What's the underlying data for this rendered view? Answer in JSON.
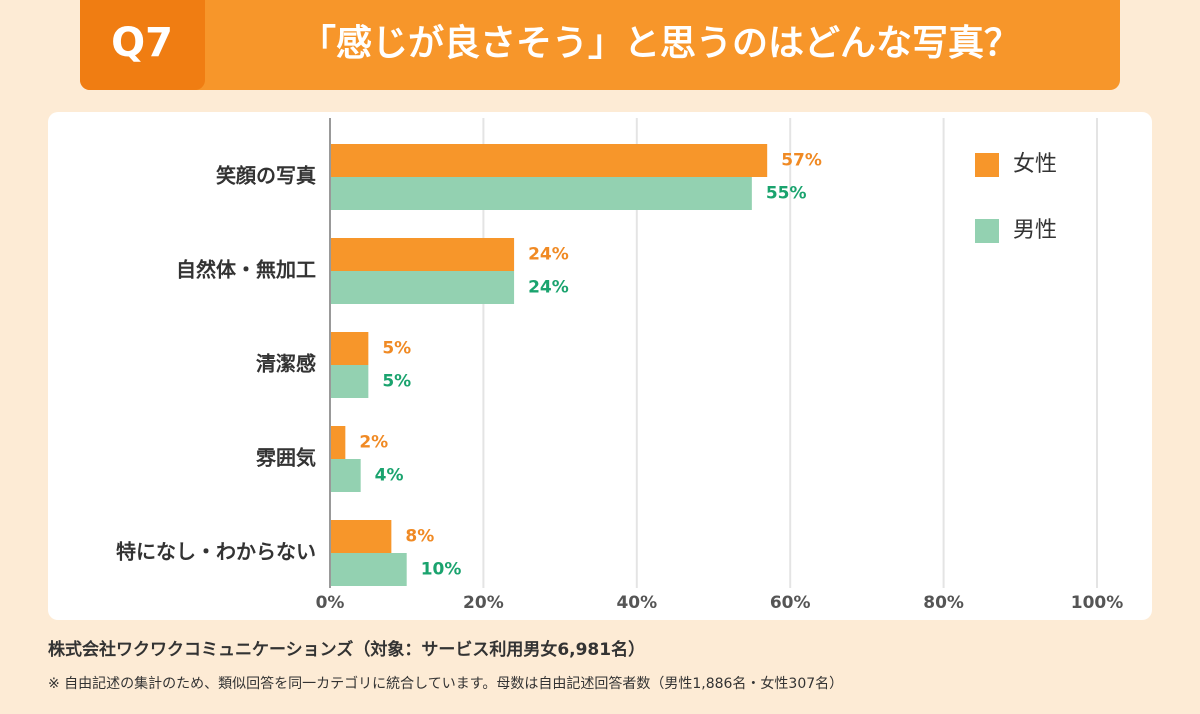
{
  "header": {
    "number": "Q7",
    "title": "「感じが良さそう」と思うのはどんな写真？"
  },
  "chart_data": {
    "type": "bar",
    "orientation": "horizontal",
    "categories": [
      "笑顔の写真",
      "自然体・無加工",
      "清潔感",
      "雰囲気",
      "特になし・わからない"
    ],
    "series": [
      {
        "name": "女性",
        "color": "#f7962a",
        "label_color": "#f08a24",
        "values": [
          57,
          24,
          5,
          2,
          8
        ],
        "value_labels": [
          "57%",
          "24%",
          "5%",
          "2%",
          "8%"
        ]
      },
      {
        "name": "男性",
        "color": "#93d1b1",
        "label_color": "#1aa36e",
        "values": [
          55,
          24,
          5,
          4,
          10
        ],
        "value_labels": [
          "55%",
          "24%",
          "5%",
          "4%",
          "10%"
        ]
      }
    ],
    "xlim": [
      0,
      100
    ],
    "xticks": [
      {
        "value": 0,
        "label": "0%"
      },
      {
        "value": 20,
        "label": "20%"
      },
      {
        "value": 40,
        "label": "40%"
      },
      {
        "value": 60,
        "label": "60%"
      },
      {
        "value": 80,
        "label": "80%"
      },
      {
        "value": 100,
        "label": "100%"
      }
    ],
    "grid": true,
    "legend": "upper right"
  },
  "footer": {
    "source": "株式会社ワクワクコミュニケーションズ（対象：サービス利用男女6,981名）",
    "note": "※ 自由記述の集計のため、類似回答を同一カテゴリに統合しています。母数は自由記述回答者数（男性1,886名・女性307名）"
  }
}
